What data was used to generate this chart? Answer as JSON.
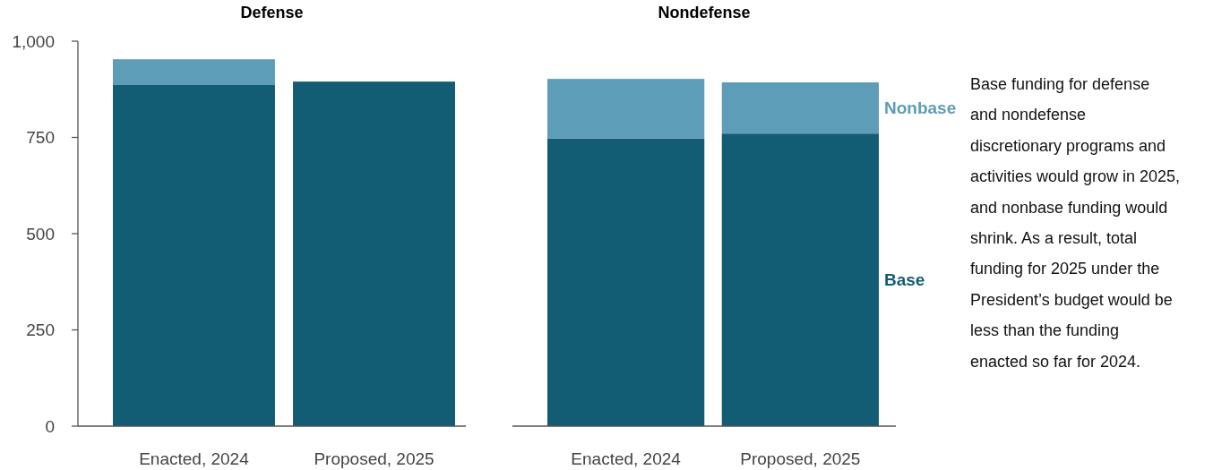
{
  "chart_data": [
    {
      "type": "bar",
      "title": "Defense",
      "stacked": true,
      "categories": [
        "Enacted, 2024",
        "Proposed, 2025"
      ],
      "ylim": [
        0,
        1000
      ],
      "yticks": [
        0,
        250,
        500,
        750,
        {
          "value": 1000,
          "label": "1,000"
        }
      ],
      "series": [
        {
          "color": "#125d74",
          "values": [
            886,
            895
          ]
        },
        {
          "color": "#5e9db8",
          "values": [
            67,
            0
          ]
        }
      ]
    },
    {
      "type": "bar",
      "title": "Nondefense",
      "stacked": true,
      "categories": [
        "Enacted, 2024",
        "Proposed, 2025"
      ],
      "ylim": [
        0,
        1000
      ],
      "tick_labels": "x",
      "series": [
        {
          "name": "Base",
          "color": "#125d74",
          "values": [
            747,
            760
          ]
        },
        {
          "name": "Nonbase",
          "color": "#5e9db8",
          "values": [
            155,
            133
          ]
        }
      ],
      "annotations": [
        "Base funding for defense and nondefense discretionary programs and activities would grow in 2025, and nonbase funding would shrink. As a result, total funding for 2025 under the President’s budget would be less than the funding enacted so far for 2024."
      ]
    }
  ]
}
